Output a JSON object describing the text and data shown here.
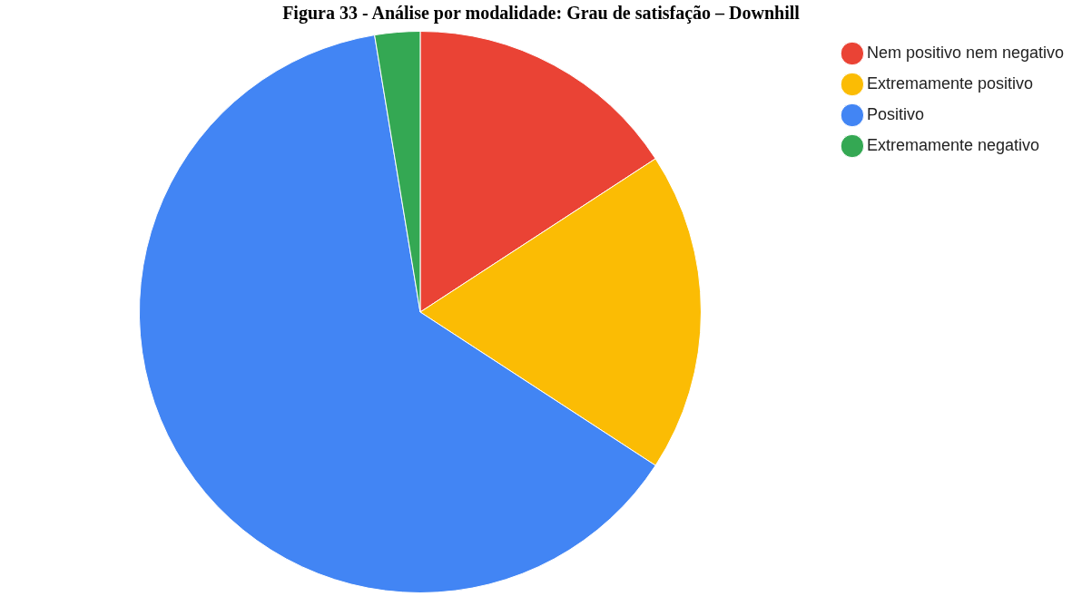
{
  "chart_data": {
    "type": "pie",
    "title": "Figura 33 - Análise por modalidade: Grau de satisfação – Downhill",
    "categories": [
      "Nem positivo nem negativo",
      "Extremamente positivo",
      "Positivo",
      "Extremamente negativo"
    ],
    "values": [
      15.8,
      18.4,
      63.2,
      2.6
    ],
    "colors": [
      "#ea4335",
      "#fbbc04",
      "#4285f4",
      "#34a853"
    ],
    "legend": "top right"
  }
}
